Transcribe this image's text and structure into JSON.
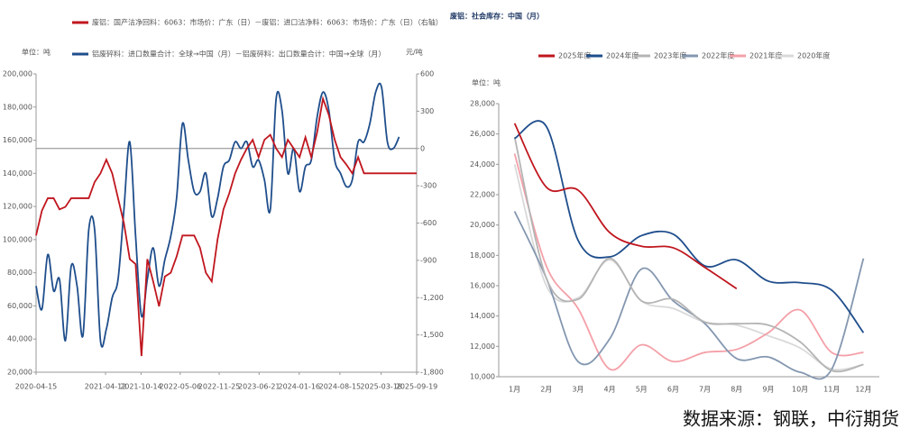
{
  "chart_data": [
    {
      "type": "line",
      "smooth": false,
      "legend": "top-left",
      "ylabel": "单位：吨",
      "y2label": "元/吨",
      "xticks": [
        "2020-04-15",
        "2021-04-12",
        "2021-10-14",
        "2022-05-06",
        "2022-11-25",
        "2023-06-21",
        "2024-01-16",
        "2024-08-15",
        "2025-03-18",
        "2025-09-19"
      ],
      "ylim": [
        20000,
        200000
      ],
      "yticks": [
        {
          "value": 20000,
          "label": "20,000"
        },
        {
          "value": 40000,
          "label": "40,000"
        },
        {
          "value": 60000,
          "label": "60,000"
        },
        {
          "value": 80000,
          "label": "80,000"
        },
        {
          "value": 100000,
          "label": "100,000"
        },
        {
          "value": 120000,
          "label": "120,000"
        },
        {
          "value": 140000,
          "label": "140,000"
        },
        {
          "value": 160000,
          "label": "160,000"
        },
        {
          "value": 180000,
          "label": "180,000"
        },
        {
          "value": 200000,
          "label": "200,000"
        }
      ],
      "y2lim": [
        -1800,
        600
      ],
      "y2ticks": [
        600,
        300,
        0,
        -300,
        -600,
        -900,
        {
          "value": -1200,
          "label": "-1,200"
        },
        {
          "value": -1500,
          "label": "-1,500"
        },
        {
          "value": -1800,
          "label": "-1,800"
        }
      ],
      "series": [
        {
          "name": "废铝：国产洁净回料：6063：市场价：广东（日）－废铝：进口洁净料：6063：市场价：广东（日）（右轴）",
          "color": "#c0161e",
          "axis": "y2",
          "values": [
            -700,
            -500,
            -400,
            -400,
            -490,
            -470,
            -400,
            -400,
            -400,
            -400,
            -270,
            -200,
            -90,
            -200,
            -400,
            -600,
            -890,
            -930,
            -1670,
            -890,
            -1070,
            -1270,
            -1030,
            -1000,
            -870,
            -700,
            -700,
            -700,
            -800,
            -1000,
            -1070,
            -730,
            -490,
            -360,
            -200,
            -90,
            0,
            70,
            -70,
            70,
            110,
            0,
            -70,
            70,
            0,
            -70,
            90,
            -70,
            130,
            400,
            270,
            70,
            -70,
            -130,
            -200,
            -70,
            -200,
            -200,
            -200,
            -200,
            -200,
            -200,
            -200,
            -200,
            -200,
            -200
          ]
        },
        {
          "name": "铝废碎料：进口数量合计：全球→中国（月）－铝废碎料：出口数量合计：中国→全球（月）",
          "color": "#1f4e8c",
          "smooth": true,
          "values": [
            72000,
            58000,
            91000,
            69000,
            76000,
            39000,
            84000,
            72000,
            42000,
            106000,
            106000,
            39000,
            46000,
            65000,
            76000,
            118000,
            159000,
            102000,
            54000,
            76000,
            95000,
            72000,
            88000,
            102000,
            125000,
            170000,
            148000,
            129000,
            129000,
            140000,
            114000,
            125000,
            144000,
            148000,
            159000,
            155000,
            159000,
            144000,
            148000,
            136000,
            118000,
            185000,
            178000,
            140000,
            155000,
            129000,
            144000,
            148000,
            174000,
            189000,
            178000,
            148000,
            140000,
            132000,
            136000,
            159000,
            159000,
            170000,
            189000,
            192000,
            159000,
            155000,
            162000,
            null,
            null,
            null
          ]
        }
      ]
    },
    {
      "type": "line",
      "smooth": true,
      "title": "废铝：社会库存：中国（月）",
      "ylabel": "单位：吨",
      "categories": [
        "1月",
        "2月",
        "3月",
        "4月",
        "5月",
        "6月",
        "7月",
        "8月",
        "9月",
        "10月",
        "11月",
        "12月"
      ],
      "ylim": [
        10000,
        28000
      ],
      "yticks": [
        {
          "value": 10000,
          "label": "10,000"
        },
        {
          "value": 12000,
          "label": "12,000"
        },
        {
          "value": 14000,
          "label": "14,000"
        },
        {
          "value": 16000,
          "label": "16,000"
        },
        {
          "value": 18000,
          "label": "18,000"
        },
        {
          "value": 20000,
          "label": "20,000"
        },
        {
          "value": 22000,
          "label": "22,000"
        },
        {
          "value": 24000,
          "label": "24,000"
        },
        {
          "value": 26000,
          "label": "26,000"
        },
        {
          "value": 28000,
          "label": "28,000"
        }
      ],
      "legend": "top",
      "series": [
        {
          "name": "2025年度",
          "color": "#c0161e",
          "values": [
            26700,
            22500,
            22300,
            19500,
            18600,
            18500,
            17200,
            15800,
            null,
            null,
            null,
            null
          ]
        },
        {
          "name": "2024年度",
          "color": "#1f4e8c",
          "values": [
            25700,
            26500,
            19000,
            17900,
            19300,
            19400,
            17300,
            17700,
            16300,
            16200,
            15700,
            12900
          ]
        },
        {
          "name": "2023年度",
          "color": "#b4b4b4",
          "values": [
            25800,
            16500,
            15100,
            17800,
            15000,
            15100,
            13600,
            13500,
            13400,
            12300,
            10400,
            10800
          ]
        },
        {
          "name": "2022年度",
          "color": "#8497b0",
          "values": [
            20900,
            16500,
            11000,
            12500,
            17100,
            15000,
            13500,
            11200,
            11300,
            10300,
            10500,
            17800
          ]
        },
        {
          "name": "2021年度",
          "color": "#f4a0a8",
          "values": [
            24700,
            17300,
            14500,
            10500,
            12100,
            11000,
            11600,
            11800,
            12900,
            14400,
            11600,
            11600
          ]
        },
        {
          "name": "2020年度",
          "color": "#d9d9d9",
          "values": [
            24000,
            16000,
            15200,
            17700,
            15000,
            14500,
            13600,
            13400,
            12700,
            11900,
            10500,
            10800
          ]
        }
      ]
    }
  ],
  "footer": "数据来源：钢联，中衍期货"
}
